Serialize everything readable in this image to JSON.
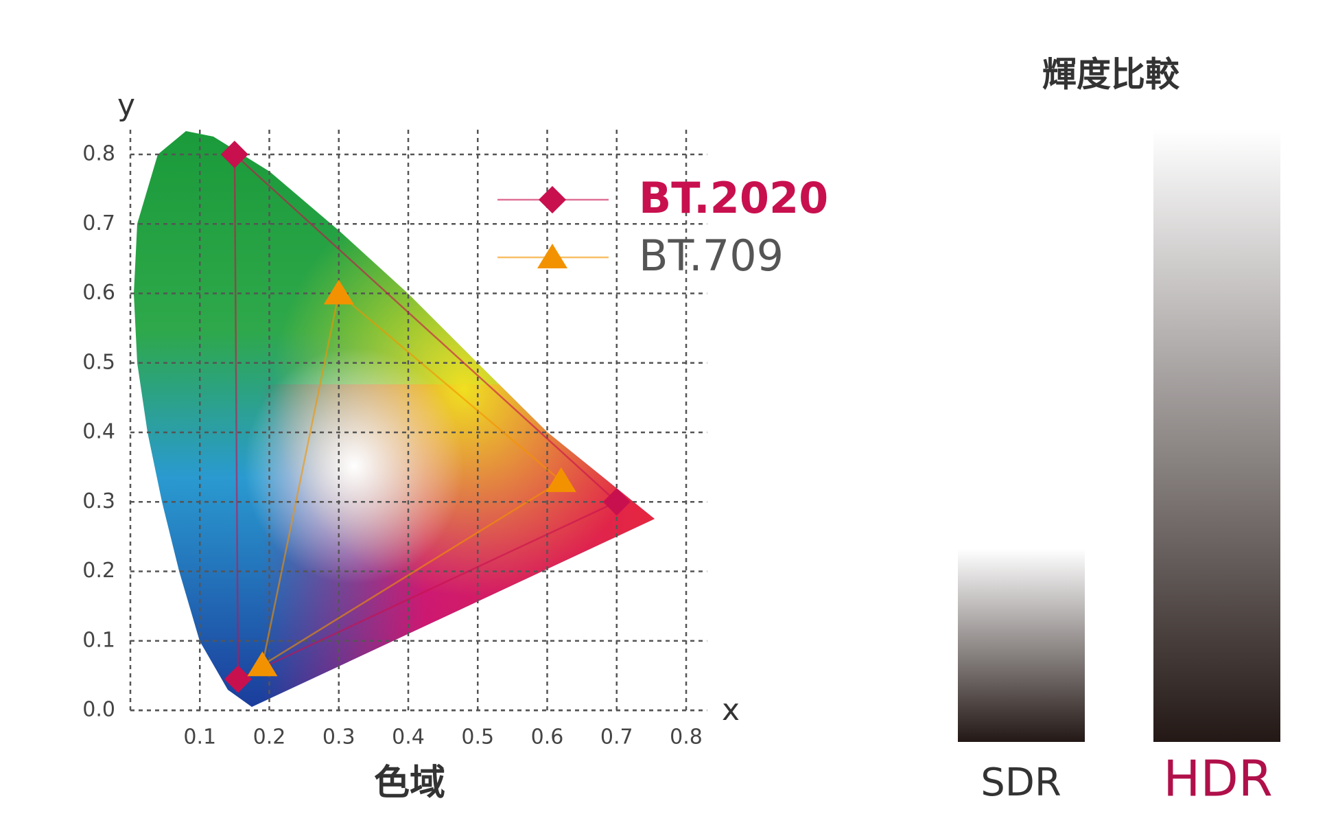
{
  "chart_data": {
    "type": "scatter",
    "title": "色域",
    "xlabel": "x",
    "ylabel": "y",
    "xlim": [
      0,
      0.83
    ],
    "ylim": [
      0,
      0.84
    ],
    "xticks": [
      0.1,
      0.2,
      0.3,
      0.4,
      0.5,
      0.6,
      0.7,
      0.8
    ],
    "yticks": [
      {
        "value": 0,
        "label": "0.0"
      },
      0.1,
      0.2,
      0.3,
      0.4,
      0.5,
      0.6,
      0.7,
      0.8
    ],
    "grid": true,
    "legend": "upper right",
    "series": [
      {
        "name": "BT.2020",
        "color": "#c8104f",
        "marker": "diamond",
        "x": [
          0.7,
          0.15,
          0.155
        ],
        "values": [
          0.3,
          0.8,
          0.045
        ]
      },
      {
        "name": "BT.709",
        "color": "#f39200",
        "marker": "triangle",
        "x": [
          0.62,
          0.3,
          0.19
        ],
        "values": [
          0.33,
          0.6,
          0.065
        ]
      }
    ]
  },
  "luminance": {
    "title": "輝度比較",
    "labels": [
      "SDR",
      "HDR"
    ]
  }
}
